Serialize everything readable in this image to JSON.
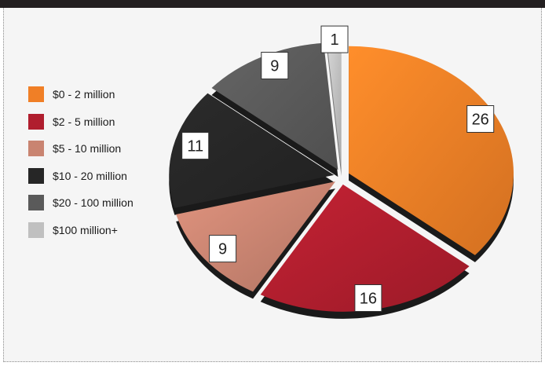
{
  "chart_data": {
    "type": "pie",
    "categories": [
      "$0 - 2 million",
      "$2 - 5 million",
      "$5 - 10 million",
      "$10 - 20 million",
      "$20 - 100 million",
      "$100 million+"
    ],
    "values": [
      26,
      16,
      9,
      11,
      9,
      1
    ],
    "data_labels": [
      "26",
      "16",
      "9",
      "11",
      "9",
      "1"
    ],
    "colors": [
      "#f07f26",
      "#b01e2e",
      "#c98471",
      "#262626",
      "#5a5a5a",
      "#c0c0c0"
    ],
    "legend_position": "left",
    "title": "",
    "style": "3d-exploded"
  }
}
